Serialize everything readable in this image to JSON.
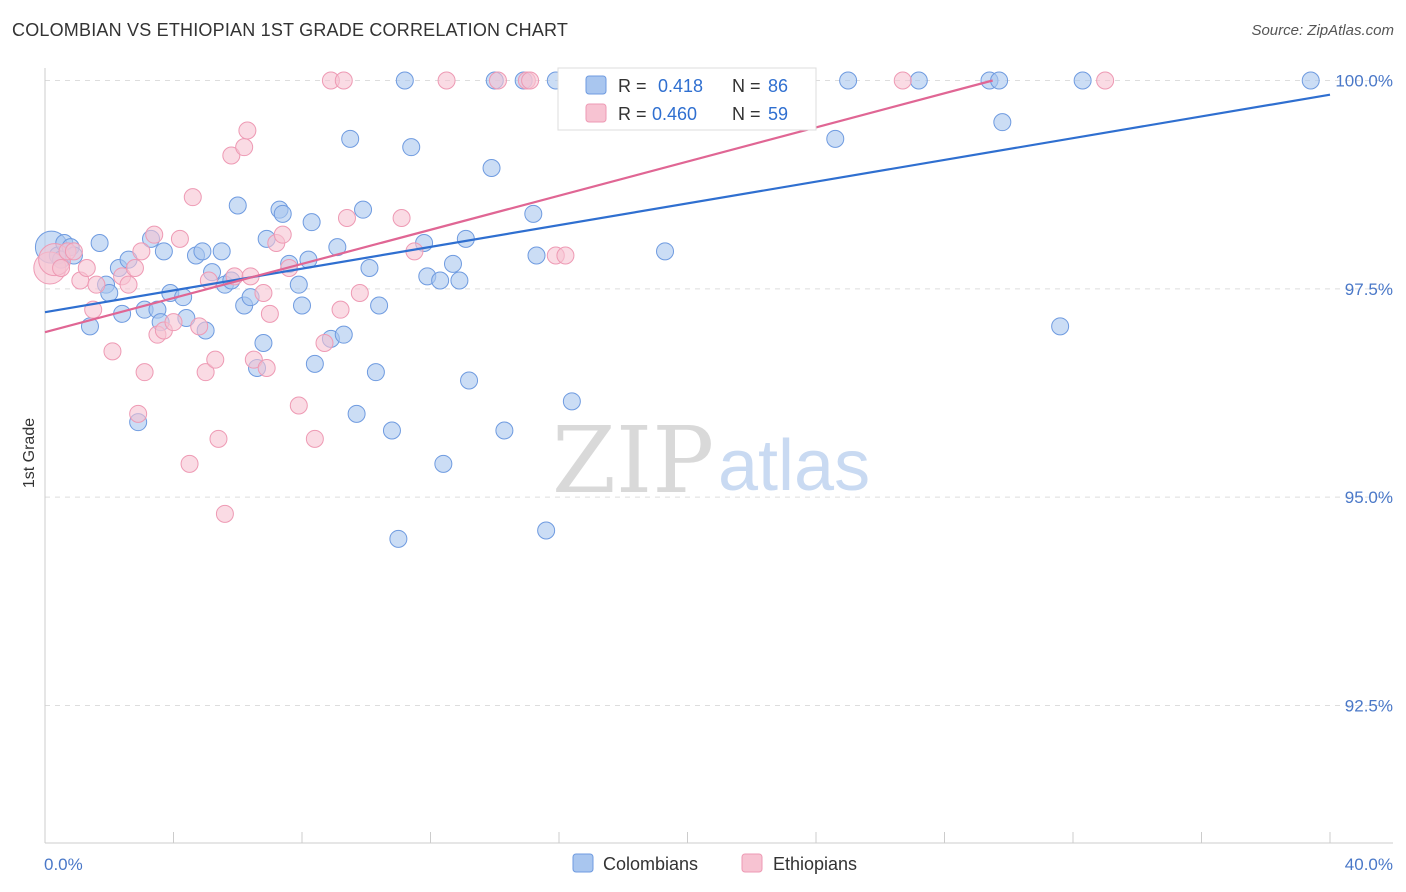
{
  "title": "COLOMBIAN VS ETHIOPIAN 1ST GRADE CORRELATION CHART",
  "source": "Source: ZipAtlas.com",
  "watermark": {
    "zip": "ZIP",
    "atlas": "atlas"
  },
  "colors": {
    "blue_fill": "#a9c6ef",
    "blue_stroke": "#6f9be0",
    "blue_line": "#2f6fd0",
    "pink_fill": "#f7c3d2",
    "pink_stroke": "#ee9ab4",
    "pink_line": "#e06694",
    "tick_text": "#4a78c8",
    "grid": "#dddddd"
  },
  "stats_box": {
    "rows": [
      {
        "r_label": "R =",
        "r_value": "0.418",
        "n_label": "N =",
        "n_value": "86"
      },
      {
        "r_label": "R =",
        "r_value": "0.460",
        "n_label": "N =",
        "n_value": "59"
      }
    ]
  },
  "chart_data": {
    "type": "scatter",
    "ylabel": "1st Grade",
    "xlim": [
      0,
      40
    ],
    "ylim": [
      90.85,
      100.15
    ],
    "x_tick_labels": [
      "0.0%",
      "40.0%"
    ],
    "y_ticks": [
      {
        "value": 100.0,
        "label": "100.0%"
      },
      {
        "value": 97.5,
        "label": "97.5%"
      },
      {
        "value": 95.0,
        "label": "95.0%"
      },
      {
        "value": 92.5,
        "label": "92.5%"
      }
    ],
    "grid": "horizontal dashed",
    "legend_position": "bottom-center",
    "legend": [
      "Colombians",
      "Ethiopians"
    ],
    "series": [
      {
        "name": "Colombians",
        "trend": {
          "x": [
            0,
            40
          ],
          "y": [
            97.22,
            99.83
          ]
        },
        "points": [
          [
            0.2,
            98.0
          ],
          [
            0.4,
            97.9
          ],
          [
            0.5,
            97.85
          ],
          [
            0.6,
            98.05
          ],
          [
            0.8,
            98.0
          ],
          [
            0.9,
            97.9
          ],
          [
            1.4,
            97.05
          ],
          [
            1.7,
            98.05
          ],
          [
            1.9,
            97.55
          ],
          [
            2.0,
            97.45
          ],
          [
            2.3,
            97.75
          ],
          [
            2.4,
            97.2
          ],
          [
            2.6,
            97.85
          ],
          [
            2.9,
            95.9
          ],
          [
            3.1,
            97.25
          ],
          [
            3.3,
            98.1
          ],
          [
            3.5,
            97.25
          ],
          [
            3.6,
            97.1
          ],
          [
            3.7,
            97.95
          ],
          [
            3.9,
            97.45
          ],
          [
            4.3,
            97.4
          ],
          [
            4.4,
            97.15
          ],
          [
            4.7,
            97.9
          ],
          [
            4.9,
            97.95
          ],
          [
            5.0,
            97.0
          ],
          [
            5.2,
            97.7
          ],
          [
            5.5,
            97.95
          ],
          [
            5.6,
            97.55
          ],
          [
            5.8,
            97.6
          ],
          [
            6.0,
            98.5
          ],
          [
            6.2,
            97.3
          ],
          [
            6.4,
            97.4
          ],
          [
            6.6,
            96.55
          ],
          [
            6.8,
            96.85
          ],
          [
            6.9,
            98.1
          ],
          [
            7.3,
            98.45
          ],
          [
            7.4,
            98.4
          ],
          [
            7.6,
            97.8
          ],
          [
            7.9,
            97.55
          ],
          [
            8.0,
            97.3
          ],
          [
            8.3,
            98.3
          ],
          [
            8.4,
            96.6
          ],
          [
            8.2,
            97.85
          ],
          [
            8.9,
            96.9
          ],
          [
            9.1,
            98.0
          ],
          [
            9.3,
            96.95
          ],
          [
            9.5,
            99.3
          ],
          [
            9.7,
            96.0
          ],
          [
            9.9,
            98.45
          ],
          [
            10.1,
            97.75
          ],
          [
            10.3,
            96.5
          ],
          [
            10.4,
            97.3
          ],
          [
            10.8,
            95.8
          ],
          [
            11.0,
            94.5
          ],
          [
            11.2,
            100.0
          ],
          [
            11.4,
            99.2
          ],
          [
            11.8,
            98.05
          ],
          [
            11.9,
            97.65
          ],
          [
            12.3,
            97.6
          ],
          [
            12.4,
            95.4
          ],
          [
            12.7,
            97.8
          ],
          [
            12.9,
            97.6
          ],
          [
            13.1,
            98.1
          ],
          [
            13.2,
            96.4
          ],
          [
            13.9,
            98.95
          ],
          [
            14.0,
            100.0
          ],
          [
            14.3,
            95.8
          ],
          [
            14.9,
            100.0
          ],
          [
            15.2,
            98.4
          ],
          [
            15.3,
            97.9
          ],
          [
            15.6,
            94.6
          ],
          [
            15.9,
            100.0
          ],
          [
            16.4,
            96.15
          ],
          [
            17.2,
            100.0
          ],
          [
            17.4,
            100.0
          ],
          [
            18.0,
            100.0
          ],
          [
            19.3,
            97.95
          ],
          [
            24.6,
            99.3
          ],
          [
            25.0,
            100.0
          ],
          [
            27.2,
            100.0
          ],
          [
            29.4,
            100.0
          ],
          [
            29.7,
            100.0
          ],
          [
            29.8,
            99.5
          ],
          [
            31.6,
            97.05
          ],
          [
            32.3,
            100.0
          ],
          [
            39.4,
            100.0
          ]
        ]
      },
      {
        "name": "Ethiopians",
        "trend": {
          "x": [
            0,
            29.5
          ],
          "y": [
            96.98,
            100.0
          ]
        },
        "points": [
          [
            0.15,
            97.75
          ],
          [
            0.3,
            97.85
          ],
          [
            0.5,
            97.75
          ],
          [
            0.7,
            97.95
          ],
          [
            0.9,
            97.95
          ],
          [
            1.1,
            97.6
          ],
          [
            1.3,
            97.75
          ],
          [
            1.5,
            97.25
          ],
          [
            1.6,
            97.55
          ],
          [
            2.1,
            96.75
          ],
          [
            2.4,
            97.65
          ],
          [
            2.6,
            97.55
          ],
          [
            2.8,
            97.75
          ],
          [
            2.9,
            96.0
          ],
          [
            3.0,
            97.95
          ],
          [
            3.1,
            96.5
          ],
          [
            3.4,
            98.15
          ],
          [
            3.5,
            96.95
          ],
          [
            3.7,
            97.0
          ],
          [
            4.0,
            97.1
          ],
          [
            4.2,
            98.1
          ],
          [
            4.5,
            95.4
          ],
          [
            4.6,
            98.6
          ],
          [
            4.8,
            97.05
          ],
          [
            5.0,
            96.5
          ],
          [
            5.1,
            97.6
          ],
          [
            5.3,
            96.65
          ],
          [
            5.4,
            95.7
          ],
          [
            5.6,
            94.8
          ],
          [
            5.8,
            99.1
          ],
          [
            5.9,
            97.65
          ],
          [
            6.2,
            99.2
          ],
          [
            6.3,
            99.4
          ],
          [
            6.4,
            97.65
          ],
          [
            6.5,
            96.65
          ],
          [
            6.8,
            97.45
          ],
          [
            6.9,
            96.55
          ],
          [
            7.0,
            97.2
          ],
          [
            7.2,
            98.05
          ],
          [
            7.4,
            98.15
          ],
          [
            7.6,
            97.75
          ],
          [
            7.9,
            96.1
          ],
          [
            8.4,
            95.7
          ],
          [
            8.7,
            96.85
          ],
          [
            8.9,
            100.0
          ],
          [
            9.2,
            97.25
          ],
          [
            9.3,
            100.0
          ],
          [
            9.4,
            98.35
          ],
          [
            9.8,
            97.45
          ],
          [
            11.1,
            98.35
          ],
          [
            11.5,
            97.95
          ],
          [
            12.5,
            100.0
          ],
          [
            14.1,
            100.0
          ],
          [
            15.0,
            100.0
          ],
          [
            15.1,
            100.0
          ],
          [
            15.9,
            97.9
          ],
          [
            16.2,
            97.9
          ],
          [
            26.7,
            100.0
          ],
          [
            33.0,
            100.0
          ]
        ]
      }
    ]
  }
}
